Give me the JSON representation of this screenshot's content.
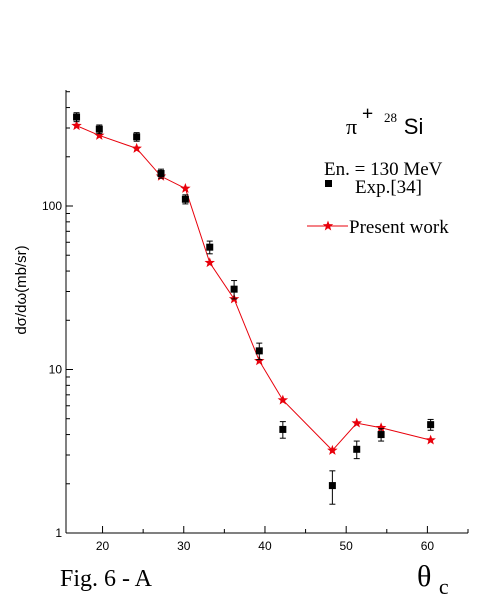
{
  "chart_data": {
    "type": "scatter",
    "ylabel": "dσ/dω(mb/sr)",
    "xlabel_symbol": "θ",
    "xlabel_sub": "c",
    "caption": "Fig. 6 - A",
    "xlim": [
      15.5,
      65
    ],
    "ylim": [
      1,
      500
    ],
    "yscale": "log",
    "x_ticks": [
      20,
      30,
      40,
      50,
      60
    ],
    "x_minor_ticks": [
      25,
      35,
      45,
      55,
      65
    ],
    "y_ticks": [
      {
        "value": 1,
        "label": "1"
      },
      {
        "value": 10,
        "label": "10"
      },
      {
        "value": 100,
        "label": "100"
      }
    ],
    "legend": {
      "placement": "top-right",
      "title_pi": "π",
      "title_charge": "+",
      "title_mass": "28",
      "title_elem": "Si",
      "energy": "En. = 130 MeV",
      "entries": [
        {
          "label": "Exp.[34]",
          "marker": "square",
          "color": "#000000"
        },
        {
          "label": "Present work",
          "marker": "star-line",
          "color": "#e8000b"
        }
      ]
    },
    "series": [
      {
        "name": "Exp.[34]",
        "style": "markers-with-errorbars",
        "color": "#000000",
        "x": [
          16.8,
          19.6,
          24.2,
          27.2,
          30.2,
          33.2,
          36.2,
          39.3,
          42.2,
          48.3,
          51.3,
          54.3,
          60.4
        ],
        "y": [
          350,
          295,
          265,
          158,
          110,
          56,
          31,
          13,
          4.3,
          1.95,
          3.25,
          4.0,
          4.6
        ],
        "err": [
          22,
          18,
          16,
          10,
          7,
          5,
          4,
          1.5,
          0.5,
          0.45,
          0.4,
          0.35,
          0.35
        ]
      },
      {
        "name": "Present work",
        "style": "line-star",
        "color": "#e8000b",
        "x": [
          16.8,
          19.6,
          24.2,
          27.2,
          30.2,
          33.2,
          36.2,
          39.3,
          42.2,
          48.3,
          51.3,
          54.3,
          60.4
        ],
        "y": [
          310,
          270,
          225,
          152,
          128,
          45,
          27,
          11.3,
          6.5,
          3.2,
          4.7,
          4.4,
          3.7
        ]
      }
    ]
  }
}
